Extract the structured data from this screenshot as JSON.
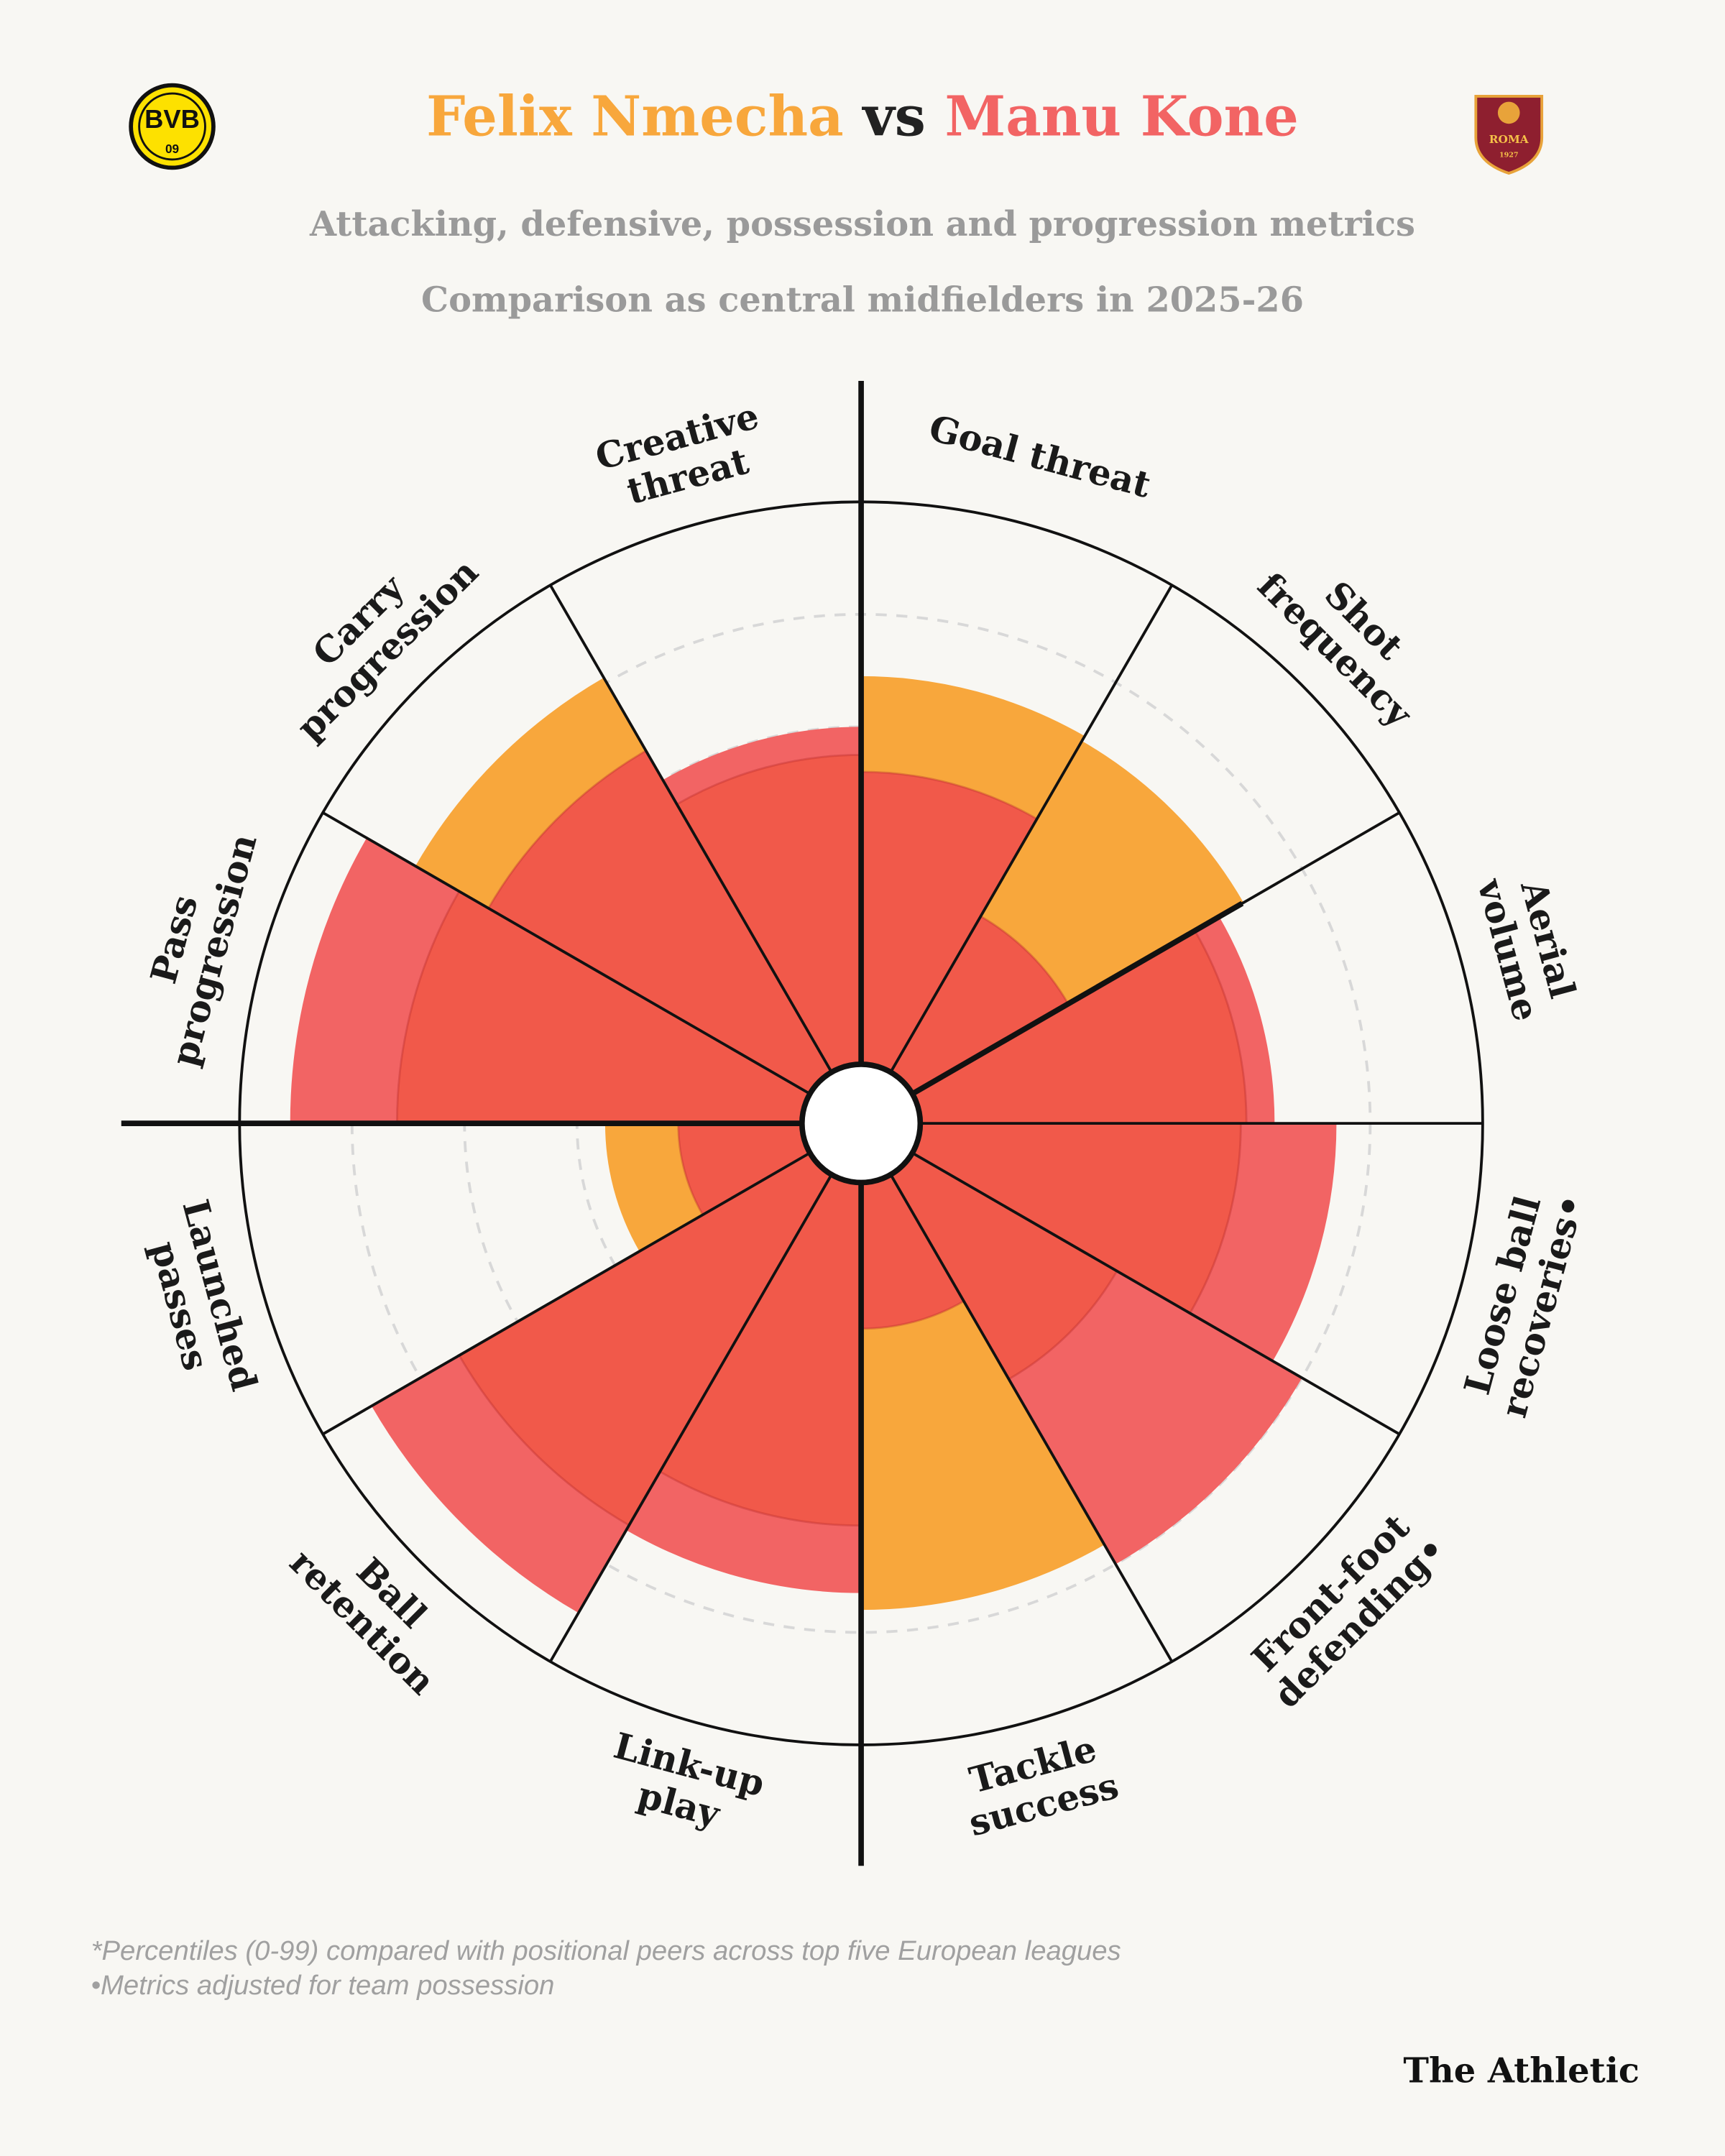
{
  "chart_data": {
    "type": "pizza",
    "title_separator": "vs",
    "subtitle": [
      "Attacking, defensive, possession and progression metrics",
      "Comparison as central midfielders in 2025-26"
    ],
    "categories": [
      [
        "Goal threat"
      ],
      [
        "Shot",
        "frequency"
      ],
      [
        "Aerial",
        "volume"
      ],
      [
        "Loose ball",
        "recoveries•"
      ],
      [
        "Front-foot",
        "defending•"
      ],
      [
        "Tackle",
        "success"
      ],
      [
        "Link-up",
        "play"
      ],
      [
        "Ball",
        "retention"
      ],
      [
        "Launched",
        "passes"
      ],
      [
        "Pass",
        "progression"
      ],
      [
        "Carry",
        "progression"
      ],
      [
        "Creative",
        "threat"
      ]
    ],
    "series": [
      {
        "name": "Felix Nmecha",
        "color": "#f8a73c",
        "values": [
          69,
          68,
          58,
          57,
          42,
          76,
          61,
          72,
          35,
          72,
          81,
          55
        ]
      },
      {
        "name": "Manu Kone",
        "color": "#f26464",
        "values": [
          52,
          32,
          63,
          74,
          80,
          26,
          73,
          90,
          22,
          91,
          66,
          60
        ]
      }
    ],
    "overlap_color": "#f1594a",
    "rlim": [
      0,
      100
    ],
    "rticks": [
      20,
      40,
      60,
      80
    ],
    "grid": true,
    "notes": [
      "*Percentiles (0-99) compared with positional peers across top five European leagues",
      "•Metrics adjusted for team possession"
    ],
    "source": "The Athletic",
    "logos": {
      "left": [
        "BVB",
        "09"
      ],
      "right": [
        "ROMA",
        "1927"
      ]
    }
  }
}
